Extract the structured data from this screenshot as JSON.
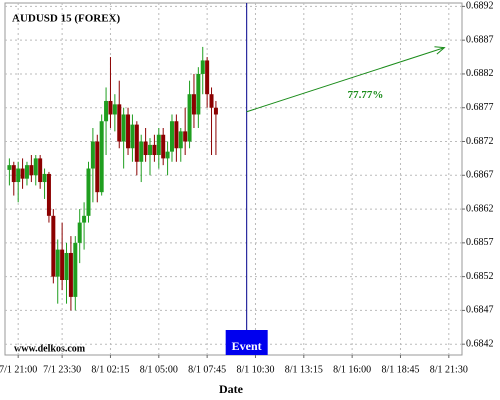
{
  "chart_data": {
    "type": "candlestick",
    "title": "AUDUSD 15 (FOREX)",
    "watermark": "www.delkos.com",
    "x_label": "Date",
    "xlim": [
      "7/1 20:15",
      "8/1 22:15"
    ],
    "ylim": [
      0.68404,
      0.68925
    ],
    "xticks": [
      "7/1 21:00",
      "7/1 23:30",
      "8/1 02:15",
      "8/1 05:00",
      "8/1 07:45",
      "8/1 10:30",
      "8/1 13:15",
      "8/1 16:00",
      "8/1 18:45",
      "8/1 21:30"
    ],
    "yticks": [
      0.6892,
      0.6887,
      0.6882,
      0.6877,
      0.6872,
      0.6867,
      0.6862,
      0.6857,
      0.6852,
      0.6847,
      0.6842
    ],
    "grid": true,
    "up_color": "#1f9e1f",
    "down_color": "#8b0000",
    "x": [
      "7/1 20:30",
      "7/1 20:45",
      "7/1 21:00",
      "7/1 21:15",
      "7/1 21:30",
      "7/1 21:45",
      "7/1 22:00",
      "7/1 22:15",
      "7/1 22:30",
      "7/1 22:45",
      "7/1 23:00",
      "7/1 23:15",
      "7/1 23:30",
      "7/1 23:45",
      "8/1 00:00",
      "8/1 00:15",
      "8/1 00:30",
      "8/1 00:45",
      "8/1 01:00",
      "8/1 01:15",
      "8/1 01:30",
      "8/1 01:45",
      "8/1 02:00",
      "8/1 02:15",
      "8/1 02:30",
      "8/1 02:45",
      "8/1 03:00",
      "8/1 03:15",
      "8/1 03:30",
      "8/1 03:45",
      "8/1 04:00",
      "8/1 04:15",
      "8/1 04:30",
      "8/1 04:45",
      "8/1 05:00",
      "8/1 05:15",
      "8/1 05:30",
      "8/1 05:45",
      "8/1 06:00",
      "8/1 06:15",
      "8/1 06:30",
      "8/1 06:45",
      "8/1 07:00",
      "8/1 07:15",
      "8/1 07:30",
      "8/1 07:45",
      "8/1 08:00",
      "8/1 08:15"
    ],
    "open": [
      0.68678,
      0.68685,
      0.6866,
      0.6868,
      0.68665,
      0.68685,
      0.6867,
      0.68695,
      0.6866,
      0.68672,
      0.6861,
      0.6852,
      0.6856,
      0.68515,
      0.68555,
      0.6849,
      0.6857,
      0.686,
      0.6861,
      0.6868,
      0.6872,
      0.68645,
      0.6875,
      0.6878,
      0.6876,
      0.68775,
      0.6872,
      0.6876,
      0.6871,
      0.68745,
      0.6869,
      0.6872,
      0.687,
      0.68715,
      0.687,
      0.6873,
      0.68695,
      0.68705,
      0.6875,
      0.6871,
      0.68735,
      0.6872,
      0.6879,
      0.6876,
      0.6882,
      0.6884,
      0.6879,
      0.6877
    ],
    "high": [
      0.68695,
      0.6869,
      0.6869,
      0.68695,
      0.6869,
      0.687,
      0.687,
      0.687,
      0.6868,
      0.68675,
      0.6862,
      0.68575,
      0.686,
      0.6857,
      0.6858,
      0.6858,
      0.6862,
      0.6863,
      0.6869,
      0.6874,
      0.6873,
      0.6876,
      0.688,
      0.68845,
      0.6879,
      0.6881,
      0.6877,
      0.6877,
      0.6876,
      0.6875,
      0.6873,
      0.6874,
      0.68725,
      0.6873,
      0.6874,
      0.6874,
      0.6872,
      0.6876,
      0.6876,
      0.6874,
      0.6877,
      0.6881,
      0.6882,
      0.6883,
      0.6886,
      0.68845,
      0.688,
      0.6878
    ],
    "low": [
      0.68655,
      0.6864,
      0.6863,
      0.6865,
      0.68655,
      0.6866,
      0.68655,
      0.6865,
      0.68635,
      0.686,
      0.6851,
      0.6848,
      0.685,
      0.6848,
      0.6847,
      0.6847,
      0.6854,
      0.6856,
      0.686,
      0.6863,
      0.6863,
      0.6864,
      0.687,
      0.6874,
      0.68735,
      0.6871,
      0.6868,
      0.687,
      0.6869,
      0.6867,
      0.6866,
      0.6869,
      0.6867,
      0.6869,
      0.6868,
      0.68685,
      0.6867,
      0.6869,
      0.6869,
      0.6869,
      0.687,
      0.6871,
      0.6874,
      0.6874,
      0.6879,
      0.6877,
      0.687,
      0.687
    ],
    "close": [
      0.68685,
      0.6866,
      0.6868,
      0.68665,
      0.68685,
      0.6867,
      0.68695,
      0.6866,
      0.68672,
      0.6861,
      0.6852,
      0.6856,
      0.68515,
      0.68555,
      0.6849,
      0.6857,
      0.686,
      0.6861,
      0.6868,
      0.6872,
      0.68645,
      0.6875,
      0.6878,
      0.6876,
      0.68775,
      0.6872,
      0.6876,
      0.6871,
      0.68745,
      0.6869,
      0.6872,
      0.687,
      0.68715,
      0.687,
      0.6873,
      0.68695,
      0.68705,
      0.6875,
      0.6871,
      0.68735,
      0.6872,
      0.6879,
      0.6876,
      0.6882,
      0.6884,
      0.6879,
      0.6877,
      0.6876
    ],
    "event": {
      "x": "8/1 10:00",
      "label": "Event",
      "color": "#0000ee"
    },
    "arrow": {
      "x": [
        "8/1 10:00",
        "8/1 21:15"
      ],
      "y": [
        0.68764,
        0.68859
      ],
      "label": "77.77%",
      "color": "#1a8c1a"
    }
  }
}
